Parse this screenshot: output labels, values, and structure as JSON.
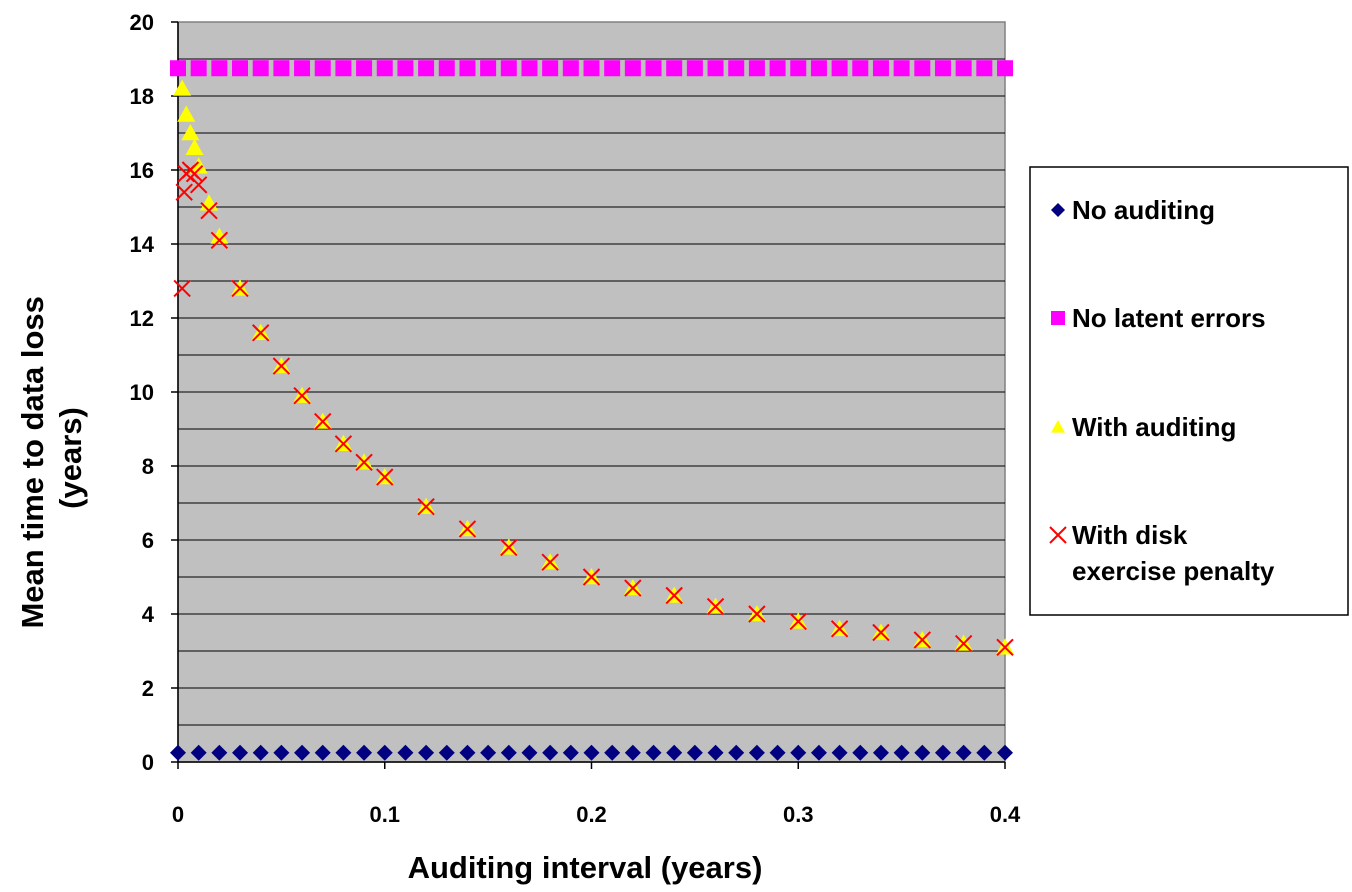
{
  "chart_data": {
    "type": "scatter",
    "title": "",
    "xlabel": "Auditing interval (years)",
    "ylabel_lines": [
      "Mean time to data loss",
      "(years)"
    ],
    "xlim": [
      0,
      0.4
    ],
    "ylim": [
      0,
      20
    ],
    "x_ticks": [
      {
        "value": 0,
        "label": "0"
      },
      {
        "value": 0.1,
        "label": "0.1"
      },
      {
        "value": 0.2,
        "label": "0.2"
      },
      {
        "value": 0.3,
        "label": "0.3"
      },
      {
        "value": 0.4,
        "label": "0.4"
      }
    ],
    "y_ticks": [
      {
        "value": 0,
        "label": "0"
      },
      {
        "value": 2,
        "label": "2"
      },
      {
        "value": 4,
        "label": "4"
      },
      {
        "value": 6,
        "label": "6"
      },
      {
        "value": 8,
        "label": "8"
      },
      {
        "value": 10,
        "label": "10"
      },
      {
        "value": 12,
        "label": "12"
      },
      {
        "value": 14,
        "label": "14"
      },
      {
        "value": 16,
        "label": "16"
      },
      {
        "value": 18,
        "label": "18"
      },
      {
        "value": 20,
        "label": "20"
      }
    ],
    "grid": "horizontal",
    "grid_minor_step": 1,
    "plot_background": "#c0c0c0",
    "legend": "right",
    "series": [
      {
        "name": "No auditing",
        "marker": "diamond",
        "color": "#000080",
        "x": [
          0,
          0.01,
          0.02,
          0.03,
          0.04,
          0.05,
          0.06,
          0.07,
          0.08,
          0.09,
          0.1,
          0.11,
          0.12,
          0.13,
          0.14,
          0.15,
          0.16,
          0.17,
          0.18,
          0.19,
          0.2,
          0.21,
          0.22,
          0.23,
          0.24,
          0.25,
          0.26,
          0.27,
          0.28,
          0.29,
          0.3,
          0.31,
          0.32,
          0.33,
          0.34,
          0.35,
          0.36,
          0.37,
          0.38,
          0.39,
          0.4
        ],
        "y": [
          0.25,
          0.25,
          0.25,
          0.25,
          0.25,
          0.25,
          0.25,
          0.25,
          0.25,
          0.25,
          0.25,
          0.25,
          0.25,
          0.25,
          0.25,
          0.25,
          0.25,
          0.25,
          0.25,
          0.25,
          0.25,
          0.25,
          0.25,
          0.25,
          0.25,
          0.25,
          0.25,
          0.25,
          0.25,
          0.25,
          0.25,
          0.25,
          0.25,
          0.25,
          0.25,
          0.25,
          0.25,
          0.25,
          0.25,
          0.25,
          0.25
        ]
      },
      {
        "name": "No latent errors",
        "marker": "square",
        "color": "#ff00ff",
        "x": [
          0,
          0.01,
          0.02,
          0.03,
          0.04,
          0.05,
          0.06,
          0.07,
          0.08,
          0.09,
          0.1,
          0.11,
          0.12,
          0.13,
          0.14,
          0.15,
          0.16,
          0.17,
          0.18,
          0.19,
          0.2,
          0.21,
          0.22,
          0.23,
          0.24,
          0.25,
          0.26,
          0.27,
          0.28,
          0.29,
          0.3,
          0.31,
          0.32,
          0.33,
          0.34,
          0.35,
          0.36,
          0.37,
          0.38,
          0.39,
          0.4
        ],
        "y": [
          18.75,
          18.75,
          18.75,
          18.75,
          18.75,
          18.75,
          18.75,
          18.75,
          18.75,
          18.75,
          18.75,
          18.75,
          18.75,
          18.75,
          18.75,
          18.75,
          18.75,
          18.75,
          18.75,
          18.75,
          18.75,
          18.75,
          18.75,
          18.75,
          18.75,
          18.75,
          18.75,
          18.75,
          18.75,
          18.75,
          18.75,
          18.75,
          18.75,
          18.75,
          18.75,
          18.75,
          18.75,
          18.75,
          18.75,
          18.75,
          18.75
        ]
      },
      {
        "name": "With auditing",
        "marker": "triangle",
        "color": "#ffff00",
        "x": [
          0.002,
          0.004,
          0.006,
          0.008,
          0.01,
          0.015,
          0.02,
          0.03,
          0.04,
          0.05,
          0.06,
          0.07,
          0.08,
          0.09,
          0.1,
          0.12,
          0.14,
          0.16,
          0.18,
          0.2,
          0.22,
          0.24,
          0.26,
          0.28,
          0.3,
          0.32,
          0.34,
          0.36,
          0.38,
          0.4
        ],
        "y": [
          18.2,
          17.5,
          17.0,
          16.6,
          16.1,
          15.1,
          14.2,
          12.8,
          11.6,
          10.7,
          9.9,
          9.2,
          8.6,
          8.1,
          7.7,
          6.9,
          6.3,
          5.8,
          5.4,
          5.0,
          4.7,
          4.5,
          4.2,
          4.0,
          3.8,
          3.6,
          3.5,
          3.3,
          3.2,
          3.1
        ]
      },
      {
        "name_lines": [
          "With disk",
          "exercise penalty"
        ],
        "marker": "x",
        "color": "#ff0000",
        "x": [
          0.002,
          0.003,
          0.004,
          0.006,
          0.008,
          0.01,
          0.015,
          0.02,
          0.03,
          0.04,
          0.05,
          0.06,
          0.07,
          0.08,
          0.09,
          0.1,
          0.12,
          0.14,
          0.16,
          0.18,
          0.2,
          0.22,
          0.24,
          0.26,
          0.28,
          0.3,
          0.32,
          0.34,
          0.36,
          0.38,
          0.4
        ],
        "y": [
          12.8,
          15.4,
          15.9,
          16.0,
          15.9,
          15.6,
          14.9,
          14.1,
          12.8,
          11.6,
          10.7,
          9.9,
          9.2,
          8.6,
          8.1,
          7.7,
          6.9,
          6.3,
          5.8,
          5.4,
          5.0,
          4.7,
          4.5,
          4.2,
          4.0,
          3.8,
          3.6,
          3.5,
          3.3,
          3.2,
          3.1
        ]
      }
    ]
  }
}
